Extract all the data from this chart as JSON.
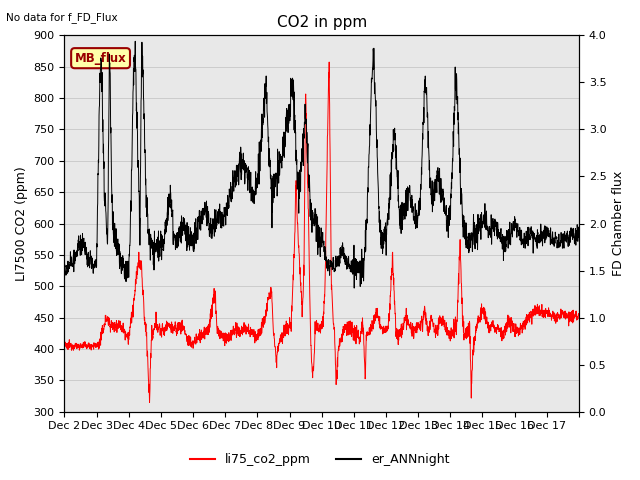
{
  "title": "CO2 in ppm",
  "top_left_text": "No data for f_FD_Flux",
  "ylabel_left": "LI7500 CO2 (ppm)",
  "ylabel_right": "FD Chamber flux",
  "ylim_left": [
    300,
    900
  ],
  "ylim_right": [
    0.0,
    4.0
  ],
  "yticks_left": [
    300,
    350,
    400,
    450,
    500,
    550,
    600,
    650,
    700,
    750,
    800,
    850,
    900
  ],
  "yticks_right": [
    0.0,
    0.5,
    1.0,
    1.5,
    2.0,
    2.5,
    3.0,
    3.5,
    4.0
  ],
  "xtick_labels": [
    "Dec 2",
    "Dec 3",
    "Dec 4",
    "Dec 5",
    "Dec 6",
    "Dec 7",
    "Dec 8",
    "Dec 9",
    "Dec 10",
    "Dec 11",
    "Dec 12",
    "Dec 13",
    "Dec 14",
    "Dec 15",
    "Dec 16",
    "Dec 17"
  ],
  "legend_labels": [
    "li75_co2_ppm",
    "er_ANNnight"
  ],
  "legend_colors": [
    "red",
    "black"
  ],
  "mb_flux_box_text": "MB_flux",
  "mb_flux_box_color": "#ffffaa",
  "mb_flux_box_edge": "#990000",
  "grid_color": "#cccccc",
  "bg_color": "#e8e8e8",
  "line_color_red": "red",
  "line_color_black": "black",
  "title_fontsize": 11,
  "label_fontsize": 9,
  "tick_fontsize": 8
}
